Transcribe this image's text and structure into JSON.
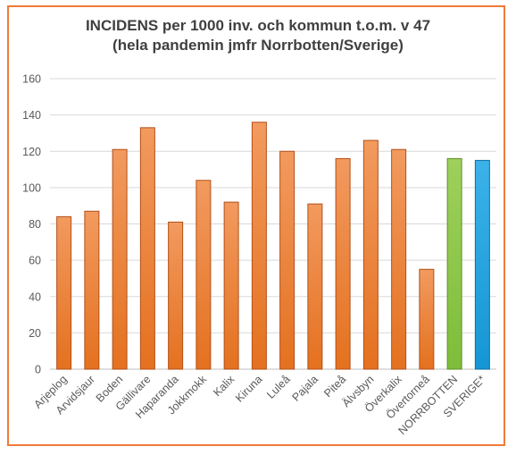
{
  "chart_data": {
    "type": "bar",
    "title": "INCIDENS per 1000 inv. och kommun t.o.m. v 47",
    "subtitle": "(hela pandemin jmfr Norrbotten/Sverige)",
    "categories": [
      "Arjeplog",
      "Arvidsjaur",
      "Boden",
      "Gällivare",
      "Haparanda",
      "Jokkmokk",
      "Kalix",
      "Kiruna",
      "Luleå",
      "Pajala",
      "Piteå",
      "Älvsbyn",
      "Överkalix",
      "Övertorneå",
      "NORRBOTTEN",
      "SVERIGE*"
    ],
    "values": [
      84,
      87,
      121,
      133,
      81,
      104,
      92,
      136,
      120,
      91,
      116,
      126,
      121,
      55,
      116,
      115
    ],
    "colors": [
      "#ed7d31",
      "#ed7d31",
      "#ed7d31",
      "#ed7d31",
      "#ed7d31",
      "#ed7d31",
      "#ed7d31",
      "#ed7d31",
      "#ed7d31",
      "#ed7d31",
      "#ed7d31",
      "#ed7d31",
      "#ed7d31",
      "#ed7d31",
      "#8bc34a",
      "#1fa2de"
    ],
    "ylim": [
      0,
      160
    ],
    "yticks": [
      0,
      20,
      40,
      60,
      80,
      100,
      120,
      140,
      160
    ],
    "grid": true,
    "legend": "none"
  }
}
